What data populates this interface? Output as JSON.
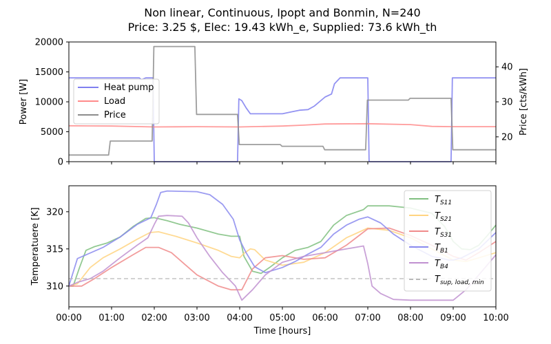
{
  "chart_data": [
    {
      "type": "line",
      "title": "Non linear, Continuous, Ipopt and Bonmin, N=240",
      "subtitle": "Price: 3.25 $, Elec: 19.43 kWh_e, Supplied: 73.6 kWh_th",
      "xlabel": "Time [hours]",
      "ylabel": "Power [W]",
      "ylabel_right": "Price [cts/kWh]",
      "xlim": [
        0,
        10
      ],
      "ylim": [
        0,
        20000
      ],
      "ylim_right": [
        12.9,
        47.1
      ],
      "x_ticks": [
        "00:00",
        "01:00",
        "02:00",
        "03:00",
        "04:00",
        "05:00",
        "06:00",
        "07:00",
        "08:00",
        "09:00",
        "10:00"
      ],
      "y_ticks": [
        "0",
        "5000",
        "10000",
        "15000",
        "20000"
      ],
      "y_ticks_right": [
        "20",
        "30",
        "40"
      ],
      "legend_position": "upper-left",
      "series": [
        {
          "name": "Heat pump",
          "axis": "left",
          "color": "#7f7ff0",
          "points": [
            [
              0,
              14000
            ],
            [
              1.65,
              14000
            ],
            [
              1.7,
              13700
            ],
            [
              1.8,
              14000
            ],
            [
              1.97,
              14000
            ],
            [
              2.0,
              0
            ],
            [
              3.95,
              0
            ],
            [
              3.98,
              10500
            ],
            [
              4.05,
              10200
            ],
            [
              4.15,
              9000
            ],
            [
              4.25,
              8000
            ],
            [
              4.5,
              8000
            ],
            [
              5.0,
              8000
            ],
            [
              5.2,
              8300
            ],
            [
              5.4,
              8600
            ],
            [
              5.6,
              8700
            ],
            [
              5.75,
              9300
            ],
            [
              6.0,
              10800
            ],
            [
              6.15,
              11300
            ],
            [
              6.22,
              13000
            ],
            [
              6.35,
              14000
            ],
            [
              6.8,
              14000
            ],
            [
              7.0,
              14000
            ],
            [
              7.03,
              0
            ],
            [
              8.95,
              0
            ],
            [
              8.98,
              14000
            ],
            [
              10,
              14000
            ]
          ]
        },
        {
          "name": "Load",
          "axis": "left",
          "color": "#ff8a8a",
          "points": [
            [
              0,
              6000
            ],
            [
              1,
              5950
            ],
            [
              2,
              5800
            ],
            [
              3,
              5850
            ],
            [
              4,
              5800
            ],
            [
              5,
              5950
            ],
            [
              5.5,
              6100
            ],
            [
              6,
              6300
            ],
            [
              7,
              6350
            ],
            [
              8,
              6200
            ],
            [
              8.5,
              5900
            ],
            [
              9,
              5850
            ],
            [
              10,
              5850
            ]
          ]
        },
        {
          "name": "Price",
          "axis": "right",
          "color": "#8c8c8c",
          "points": [
            [
              0,
              14.8
            ],
            [
              0.93,
              14.8
            ],
            [
              0.97,
              18.8
            ],
            [
              1.95,
              18.8
            ],
            [
              1.99,
              45.8
            ],
            [
              2.95,
              45.8
            ],
            [
              2.99,
              26.4
            ],
            [
              3.95,
              26.4
            ],
            [
              3.99,
              17.8
            ],
            [
              4.95,
              17.8
            ],
            [
              4.99,
              17.3
            ],
            [
              5.95,
              17.3
            ],
            [
              5.99,
              16.3
            ],
            [
              6.95,
              16.3
            ],
            [
              6.99,
              30.5
            ],
            [
              7.95,
              30.5
            ],
            [
              7.99,
              31.0
            ],
            [
              8.95,
              31.0
            ],
            [
              8.99,
              16.3
            ],
            [
              10,
              16.3
            ]
          ]
        }
      ]
    },
    {
      "type": "line",
      "xlabel": "Time [hours]",
      "ylabel": "Temperatuere [K]",
      "xlim": [
        0,
        10
      ],
      "ylim": [
        307.2,
        323.5
      ],
      "x_ticks": [
        "00:00",
        "01:00",
        "02:00",
        "03:00",
        "04:00",
        "05:00",
        "06:00",
        "07:00",
        "08:00",
        "09:00",
        "10:00"
      ],
      "y_ticks": [
        "310",
        "315",
        "320"
      ],
      "legend_position": "upper-right",
      "series": [
        {
          "name": "T_{S11}",
          "color": "#7fbf7f",
          "points": [
            [
              0,
              310
            ],
            [
              0.1,
              310
            ],
            [
              0.25,
              312.5
            ],
            [
              0.4,
              314.8
            ],
            [
              0.6,
              315.3
            ],
            [
              0.9,
              315.8
            ],
            [
              1.2,
              316.6
            ],
            [
              1.5,
              318
            ],
            [
              1.8,
              319.1
            ],
            [
              2,
              319.2
            ],
            [
              2.3,
              318.8
            ],
            [
              2.6,
              318.3
            ],
            [
              3,
              317.8
            ],
            [
              3.5,
              317
            ],
            [
              3.8,
              316.7
            ],
            [
              4.0,
              316.7
            ],
            [
              4.1,
              314
            ],
            [
              4.3,
              312
            ],
            [
              4.5,
              311.7
            ],
            [
              4.7,
              312.5
            ],
            [
              5,
              313.8
            ],
            [
              5.3,
              314.8
            ],
            [
              5.6,
              315.2
            ],
            [
              5.9,
              316
            ],
            [
              6.2,
              318.2
            ],
            [
              6.5,
              319.5
            ],
            [
              6.9,
              320.3
            ],
            [
              7.0,
              320.8
            ],
            [
              7.5,
              320.8
            ],
            [
              8,
              320.5
            ],
            [
              8.5,
              319.8
            ],
            [
              8.8,
              318
            ],
            [
              9.0,
              316
            ],
            [
              9.2,
              315
            ],
            [
              9.4,
              314.9
            ],
            [
              9.6,
              315.5
            ],
            [
              9.8,
              316.8
            ],
            [
              10,
              318.2
            ]
          ]
        },
        {
          "name": "T_{S21}",
          "color": "#ffd480",
          "points": [
            [
              0,
              310
            ],
            [
              0.2,
              310.3
            ],
            [
              0.5,
              312.5
            ],
            [
              0.8,
              313.8
            ],
            [
              1.2,
              315
            ],
            [
              1.6,
              316.3
            ],
            [
              1.9,
              317.2
            ],
            [
              2.1,
              317.3
            ],
            [
              2.5,
              316.7
            ],
            [
              3,
              315.8
            ],
            [
              3.5,
              314.8
            ],
            [
              3.8,
              314
            ],
            [
              4.0,
              313.8
            ],
            [
              4.1,
              314.4
            ],
            [
              4.25,
              315
            ],
            [
              4.35,
              314.9
            ],
            [
              4.6,
              313.5
            ],
            [
              5,
              312.8
            ],
            [
              5.5,
              313.2
            ],
            [
              6,
              314.5
            ],
            [
              6.5,
              316.5
            ],
            [
              7,
              317.8
            ],
            [
              7.5,
              317.5
            ],
            [
              8,
              316.5
            ],
            [
              8.5,
              315
            ],
            [
              9,
              313.5
            ],
            [
              9.3,
              313.3
            ],
            [
              9.6,
              313.8
            ],
            [
              10,
              314.5
            ]
          ]
        },
        {
          "name": "T_{S31}",
          "color": "#f08a8a",
          "points": [
            [
              0,
              310
            ],
            [
              0.3,
              310
            ],
            [
              0.6,
              311
            ],
            [
              1,
              312.5
            ],
            [
              1.5,
              314.2
            ],
            [
              1.8,
              315.2
            ],
            [
              2.1,
              315.2
            ],
            [
              2.4,
              314.5
            ],
            [
              2.7,
              313
            ],
            [
              3,
              311.5
            ],
            [
              3.5,
              310
            ],
            [
              3.8,
              309.5
            ],
            [
              4.05,
              309.5
            ],
            [
              4.3,
              312.3
            ],
            [
              4.6,
              313.8
            ],
            [
              5,
              314.1
            ],
            [
              5.5,
              313.6
            ],
            [
              6,
              313.8
            ],
            [
              6.5,
              315.5
            ],
            [
              7,
              317.7
            ],
            [
              7.5,
              317.8
            ],
            [
              8,
              316.8
            ],
            [
              8.5,
              315.5
            ],
            [
              9,
              314
            ],
            [
              9.3,
              313.5
            ],
            [
              9.6,
              314.5
            ],
            [
              10,
              316
            ]
          ]
        },
        {
          "name": "T_{B1}",
          "color": "#8a8aee",
          "points": [
            [
              0,
              310
            ],
            [
              0.08,
              311.5
            ],
            [
              0.2,
              313.7
            ],
            [
              0.4,
              314.2
            ],
            [
              0.8,
              315.2
            ],
            [
              1.2,
              316.6
            ],
            [
              1.6,
              318.3
            ],
            [
              1.85,
              319
            ],
            [
              1.92,
              319.2
            ],
            [
              2.05,
              321
            ],
            [
              2.15,
              322.6
            ],
            [
              2.3,
              322.8
            ],
            [
              3.0,
              322.7
            ],
            [
              3.3,
              322.3
            ],
            [
              3.6,
              321
            ],
            [
              3.85,
              319
            ],
            [
              4.0,
              316.2
            ],
            [
              4.15,
              314.5
            ],
            [
              4.35,
              312.6
            ],
            [
              4.6,
              311.8
            ],
            [
              5,
              312.5
            ],
            [
              5.3,
              313.3
            ],
            [
              5.6,
              314.3
            ],
            [
              5.9,
              315.2
            ],
            [
              6.2,
              317
            ],
            [
              6.5,
              318.2
            ],
            [
              6.8,
              319
            ],
            [
              7.0,
              319.3
            ],
            [
              7.3,
              318.5
            ],
            [
              7.6,
              317
            ],
            [
              8,
              315.5
            ],
            [
              8.5,
              314
            ],
            [
              8.9,
              313.5
            ],
            [
              9.0,
              313.5
            ],
            [
              9.2,
              313.8
            ],
            [
              9.6,
              315
            ],
            [
              10,
              317.2
            ]
          ]
        },
        {
          "name": "T_{B4}",
          "color": "#c090d0",
          "points": [
            [
              0,
              310
            ],
            [
              0.2,
              310.5
            ],
            [
              0.5,
              311
            ],
            [
              0.8,
              312
            ],
            [
              1.2,
              313.8
            ],
            [
              1.6,
              315.5
            ],
            [
              1.85,
              316.5
            ],
            [
              2.0,
              318.3
            ],
            [
              2.1,
              319.4
            ],
            [
              2.3,
              319.5
            ],
            [
              2.65,
              319.4
            ],
            [
              2.8,
              318.5
            ],
            [
              3,
              316.5
            ],
            [
              3.3,
              314
            ],
            [
              3.6,
              311.8
            ],
            [
              3.9,
              310
            ],
            [
              4.05,
              308.1
            ],
            [
              4.3,
              309.5
            ],
            [
              4.6,
              311.5
            ],
            [
              5,
              313.2
            ],
            [
              5.5,
              314
            ],
            [
              6,
              314.5
            ],
            [
              6.5,
              315
            ],
            [
              6.9,
              315.4
            ],
            [
              7.0,
              313
            ],
            [
              7.1,
              310
            ],
            [
              7.3,
              309
            ],
            [
              7.6,
              308.2
            ],
            [
              8,
              308.1
            ],
            [
              9.0,
              308.1
            ],
            [
              9.3,
              309.5
            ],
            [
              9.6,
              311.5
            ],
            [
              10,
              314.2
            ]
          ]
        },
        {
          "name": "T_{sup,load,min}",
          "color": "#b8b8b8",
          "dashed": true,
          "points": [
            [
              0,
              311
            ],
            [
              10,
              311
            ]
          ]
        }
      ]
    }
  ]
}
